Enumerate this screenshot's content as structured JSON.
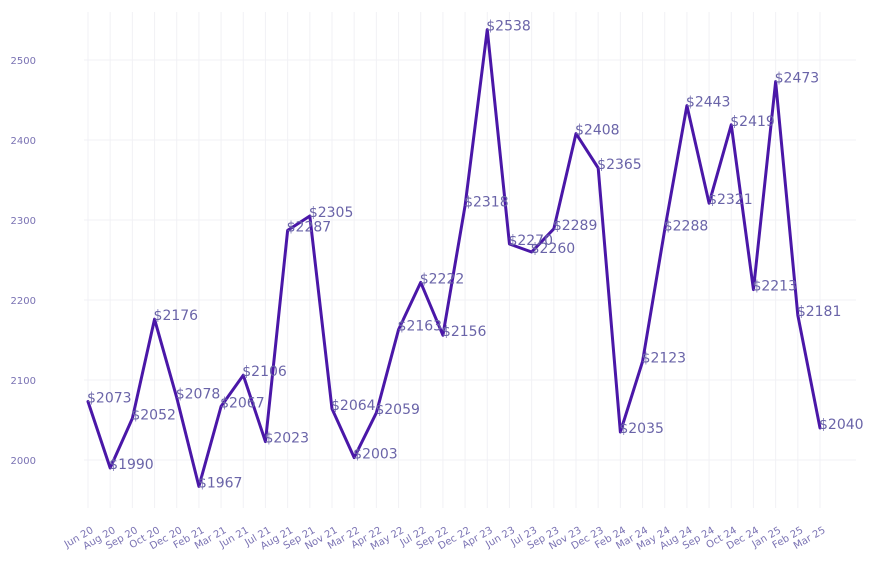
{
  "chart_data": {
    "type": "line",
    "title": "",
    "xlabel": "",
    "ylabel": "",
    "ylim": [
      1940,
      2560
    ],
    "yticks": [
      2000,
      2100,
      2200,
      2300,
      2400,
      2500
    ],
    "grid": true,
    "legend": "none",
    "line_color": "#4a17a8",
    "label_prefix": "$",
    "categories": [
      "Jun 20",
      "Aug 20",
      "Sep 20",
      "Oct 20",
      "Dec 20",
      "Feb 21",
      "Mar 21",
      "Jun 21",
      "Jul 21",
      "Aug 21",
      "Sep 21",
      "Nov 21",
      "Mar 22",
      "Apr 22",
      "May 22",
      "Jul 22",
      "Sep 22",
      "Dec 22",
      "Apr 23",
      "Jun 23",
      "Jul 23",
      "Sep 23",
      "Nov 23",
      "Dec 23",
      "Feb 24",
      "Mar 24",
      "May 24",
      "Aug 24",
      "Sep 24",
      "Oct 24",
      "Dec 24",
      "Jan 25",
      "Feb 25",
      "Mar 25"
    ],
    "values": [
      2073,
      1990,
      2052,
      2176,
      2078,
      1967,
      2067,
      2106,
      2023,
      2287,
      2305,
      2064,
      2003,
      2059,
      2163,
      2222,
      2156,
      2318,
      2538,
      2270,
      2260,
      2289,
      2408,
      2365,
      2035,
      2123,
      2288,
      2443,
      2321,
      2419,
      2213,
      2473,
      2181,
      2040
    ]
  }
}
